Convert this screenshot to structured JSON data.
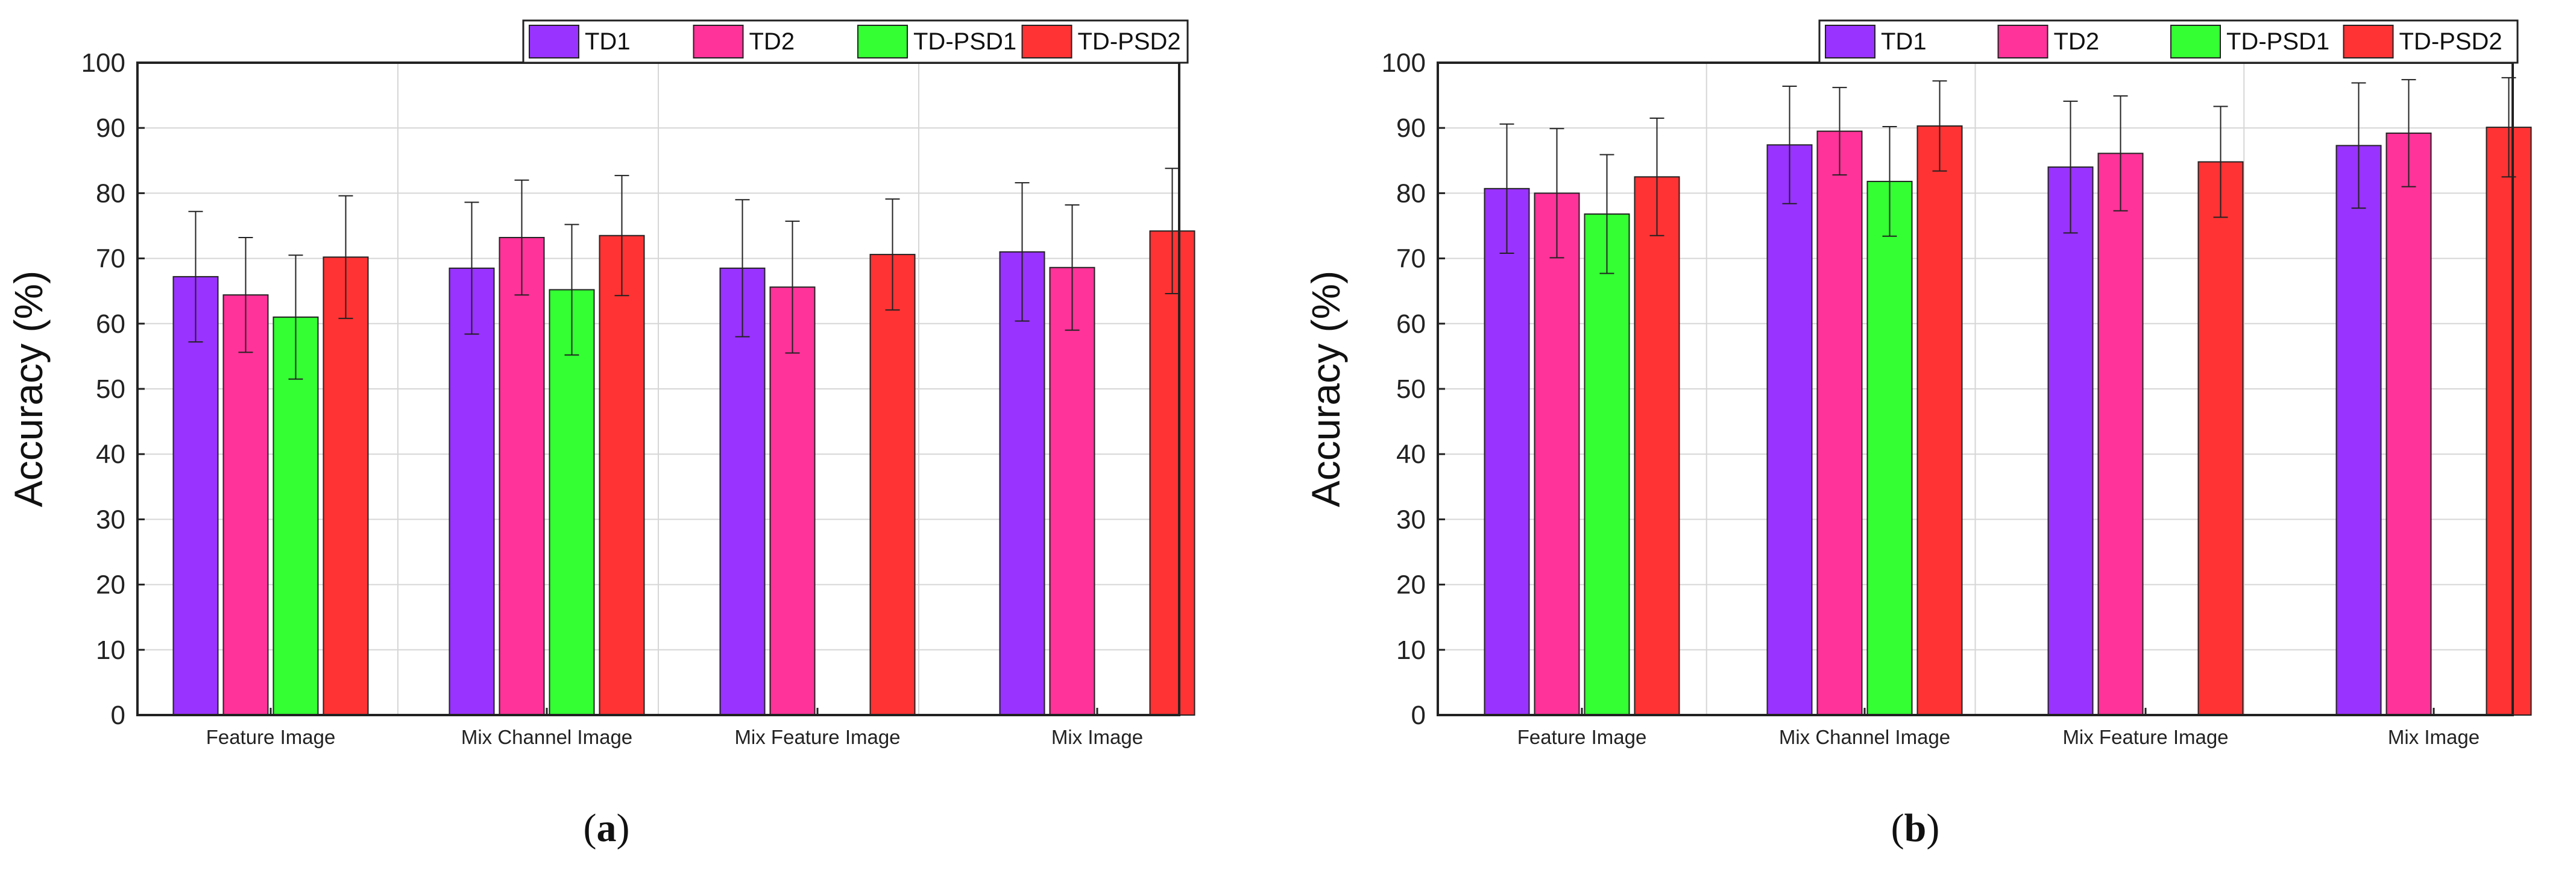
{
  "chart_data": [
    {
      "type": "bar",
      "panel": "a",
      "ylabel": "Accuracy (%)",
      "ylim": [
        0,
        100
      ],
      "yticks": [
        "0",
        "10",
        "20",
        "30",
        "40",
        "50",
        "60",
        "70",
        "80",
        "90",
        "100"
      ],
      "grid": true,
      "legend_position": "top",
      "categories": [
        "Feature Image",
        "Mix Channel Image",
        "Mix Feature Image",
        "Mix Image"
      ],
      "series": [
        {
          "name": "TD1",
          "color": "#9933ff",
          "values": [
            67.2,
            68.5,
            68.5,
            71.0
          ],
          "errors": [
            10.0,
            10.1,
            10.5,
            10.6
          ]
        },
        {
          "name": "TD2",
          "color": "#ff3399",
          "values": [
            64.4,
            73.2,
            65.6,
            68.6
          ],
          "errors": [
            8.8,
            8.8,
            10.1,
            9.6
          ]
        },
        {
          "name": "TD-PSD1",
          "color": "#33ff33",
          "values": [
            61.0,
            65.2,
            null,
            null
          ],
          "errors": [
            9.5,
            10.0,
            null,
            null
          ]
        },
        {
          "name": "TD-PSD2",
          "color": "#ff3333",
          "values": [
            70.2,
            73.5,
            70.6,
            74.2
          ],
          "errors": [
            9.4,
            9.2,
            8.5,
            9.6
          ]
        }
      ],
      "caption_open": "(",
      "caption_letter": "a",
      "caption_close": ")"
    },
    {
      "type": "bar",
      "panel": "b",
      "ylabel": "Accuracy (%)",
      "ylim": [
        0,
        100
      ],
      "yticks": [
        "0",
        "10",
        "20",
        "30",
        "40",
        "50",
        "60",
        "70",
        "80",
        "90",
        "100"
      ],
      "grid": true,
      "legend_position": "top",
      "categories": [
        "Feature Image",
        "Mix Channel Image",
        "Mix Feature Image",
        "Mix Image"
      ],
      "series": [
        {
          "name": "TD1",
          "color": "#9933ff",
          "values": [
            80.7,
            87.4,
            84.0,
            87.3
          ],
          "errors": [
            9.9,
            9.0,
            10.1,
            9.6
          ]
        },
        {
          "name": "TD2",
          "color": "#ff3399",
          "values": [
            80.0,
            89.5,
            86.1,
            89.2
          ],
          "errors": [
            9.9,
            6.7,
            8.8,
            8.2
          ]
        },
        {
          "name": "TD-PSD1",
          "color": "#33ff33",
          "values": [
            76.8,
            81.8,
            null,
            null
          ],
          "errors": [
            9.1,
            8.4,
            null,
            null
          ]
        },
        {
          "name": "TD-PSD2",
          "color": "#ff3333",
          "values": [
            82.5,
            90.3,
            84.8,
            90.1
          ],
          "errors": [
            9.0,
            6.9,
            8.5,
            7.6
          ]
        }
      ],
      "caption_open": "(",
      "caption_letter": "b",
      "caption_close": ")"
    }
  ]
}
